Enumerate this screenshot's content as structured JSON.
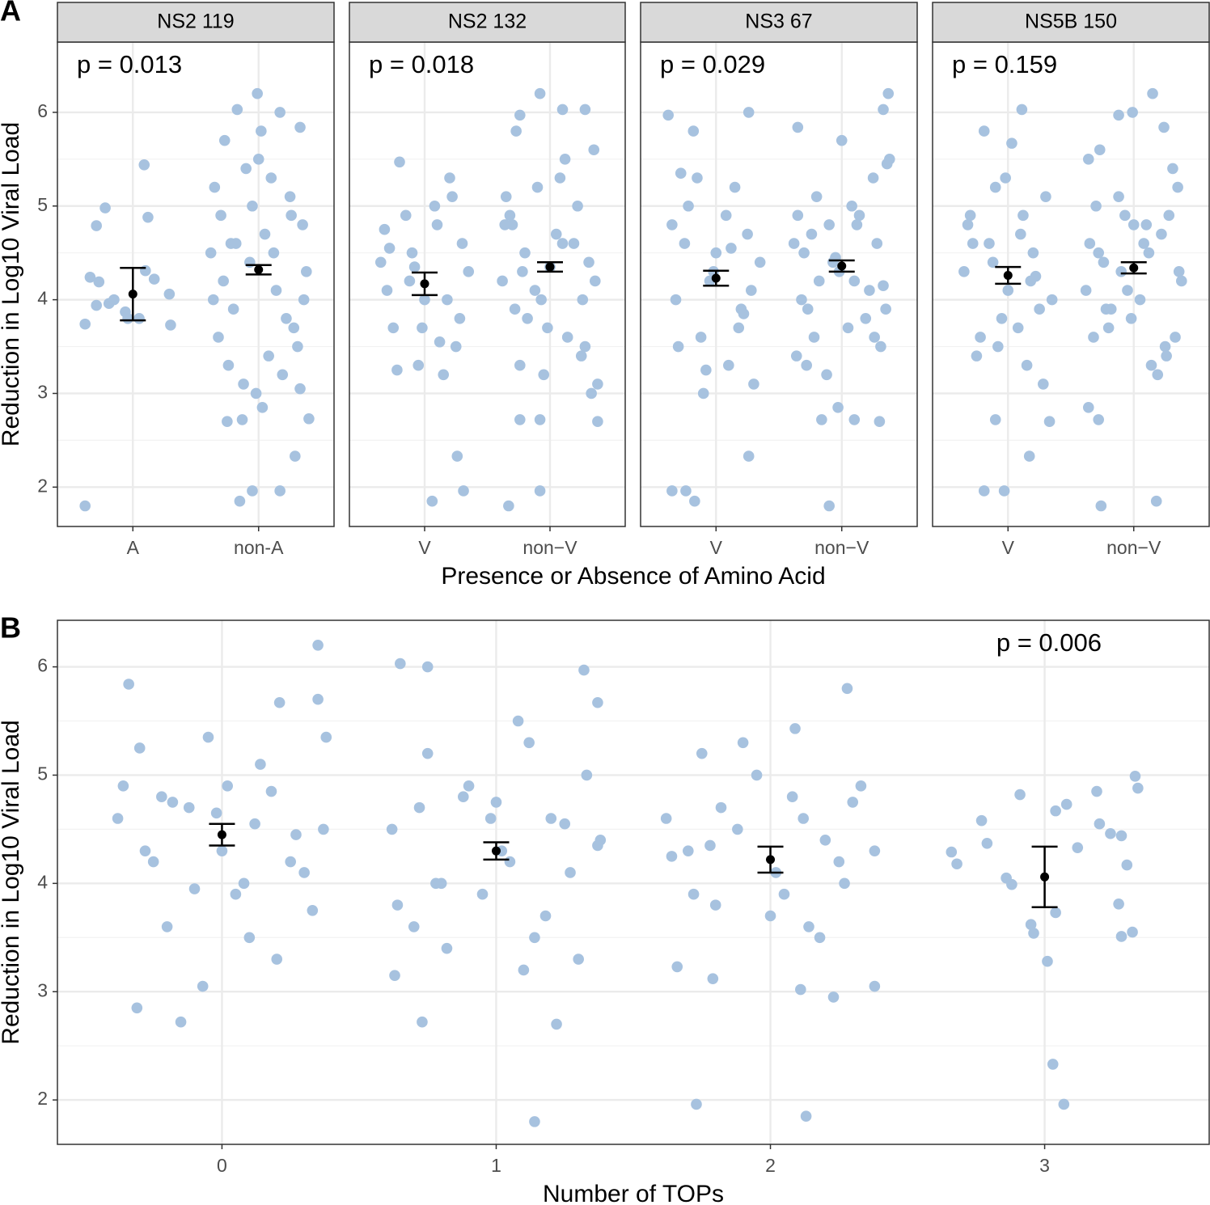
{
  "chart_data": [
    {
      "type": "scatter",
      "panel_label": "A",
      "title": "NS2 119",
      "annotation": "p = 0.013",
      "annotation_corner": "top-left",
      "ylabel": "Reduction in Log10 Viral Load",
      "xlabel": "Presence or Absence of Amino Acid",
      "categories": [
        "A",
        "non-A"
      ],
      "xlim": [
        0.4,
        2.6
      ],
      "ylim": [
        1.58,
        6.75
      ],
      "yticks": [
        2,
        3,
        4,
        5,
        6
      ],
      "grid": true,
      "series": [
        {
          "color": "#a7c2df",
          "x": [
            0.62,
            0.62,
            0.66,
            0.71,
            0.71,
            0.73,
            0.78,
            0.81,
            0.85,
            0.94,
            0.96,
            1.05,
            1.09,
            1.1,
            1.12,
            1.17,
            1.29,
            1.3,
            1.85,
            1.95,
            2.17,
            2.29,
            1.75,
            1.87,
            2.4,
            2.03,
            1.99,
            1.83,
            2.17,
            2.33,
            2.02,
            1.65,
            1.7,
            1.78,
            1.9,
            2.1,
            2.25,
            2.35,
            1.62,
            1.72,
            1.8,
            1.93,
            2.05,
            2.14,
            2.22,
            2.31,
            2.38,
            1.68,
            1.76,
            1.88,
            1.98,
            2.08,
            2.19,
            2.28,
            2.36,
            1.64,
            1.82,
            2.12,
            2.26,
            1.95,
            2.0,
            1.73,
            2.33
          ],
          "values": [
            1.8,
            3.74,
            4.24,
            3.94,
            4.79,
            4.19,
            4.98,
            3.96,
            4.0,
            3.87,
            3.8,
            3.8,
            5.44,
            4.31,
            4.88,
            4.22,
            4.06,
            3.73,
            1.85,
            1.96,
            1.96,
            2.33,
            2.7,
            2.72,
            2.73,
            2.85,
            6.2,
            6.03,
            6.0,
            5.84,
            5.8,
            5.2,
            4.9,
            4.6,
            5.4,
            5.3,
            5.1,
            4.8,
            4.5,
            4.2,
            3.9,
            4.4,
            4.7,
            4.1,
            3.8,
            3.5,
            4.3,
            3.6,
            3.3,
            3.1,
            3.0,
            3.4,
            3.2,
            3.7,
            4.0,
            4.0,
            4.6,
            4.5,
            4.9,
            5.0,
            5.5,
            5.7,
            3.05
          ]
        }
      ],
      "means": [
        4.06,
        4.32
      ],
      "errors": [
        0.28,
        0.05
      ]
    },
    {
      "type": "scatter",
      "title": "NS2 132",
      "annotation": "p = 0.018",
      "annotation_corner": "top-left",
      "categories": [
        "V",
        "non−V"
      ],
      "xlim": [
        0.4,
        2.6
      ],
      "ylim": [
        1.58,
        6.75
      ],
      "yticks": [
        2,
        3,
        4,
        5,
        6
      ],
      "grid": true,
      "series": [
        {
          "color": "#a7c2df",
          "x": [
            1.06,
            1.31,
            1.26,
            0.8,
            0.65,
            0.7,
            0.75,
            0.85,
            0.9,
            0.95,
            1.0,
            1.1,
            1.15,
            1.2,
            1.25,
            1.3,
            1.35,
            0.68,
            0.78,
            0.88,
            0.98,
            1.08,
            1.18,
            1.28,
            0.72,
            0.92,
            1.12,
            1.22,
            1.67,
            1.92,
            1.76,
            1.92,
            2.38,
            1.92,
            1.76,
            2.1,
            2.28,
            1.65,
            1.7,
            1.78,
            1.9,
            2.1,
            2.25,
            2.35,
            1.62,
            1.72,
            1.8,
            1.93,
            2.05,
            2.14,
            2.22,
            2.31,
            2.38,
            1.68,
            1.76,
            1.88,
            1.98,
            2.08,
            2.19,
            2.28,
            2.36,
            1.64,
            1.82,
            2.12,
            2.26,
            1.95,
            2.0,
            1.73,
            2.33
          ],
          "values": [
            1.85,
            1.96,
            2.33,
            5.47,
            4.4,
            4.1,
            3.7,
            4.9,
            4.5,
            3.3,
            4.0,
            4.8,
            3.2,
            5.3,
            3.5,
            4.6,
            4.3,
            4.75,
            3.25,
            4.2,
            3.7,
            5.0,
            4.0,
            3.8,
            4.55,
            4.35,
            3.55,
            5.1,
            1.8,
            1.96,
            2.72,
            2.72,
            2.7,
            6.2,
            5.97,
            6.03,
            6.03,
            5.1,
            4.8,
            4.3,
            5.2,
            4.6,
            3.4,
            5.6,
            4.2,
            3.9,
            4.5,
            4.0,
            4.7,
            3.6,
            5.0,
            4.4,
            3.1,
            4.9,
            3.3,
            4.1,
            3.7,
            5.3,
            4.6,
            3.5,
            4.2,
            4.8,
            3.8,
            5.5,
            4.0,
            3.2,
            4.35,
            5.8,
            3.0
          ]
        }
      ],
      "means": [
        4.17,
        4.35
      ],
      "errors": [
        0.12,
        0.05
      ]
    },
    {
      "type": "scatter",
      "title": "NS3 67",
      "annotation": "p = 0.029",
      "annotation_corner": "top-left",
      "categories": [
        "V",
        "non−V"
      ],
      "xlim": [
        0.4,
        2.6
      ],
      "ylim": [
        1.58,
        6.75
      ],
      "yticks": [
        2,
        3,
        4,
        5,
        6
      ],
      "grid": true,
      "series": [
        {
          "color": "#a7c2df",
          "x": [
            0.65,
            0.76,
            0.83,
            1.26,
            0.62,
            1.26,
            0.82,
            0.65,
            0.7,
            0.75,
            0.85,
            0.9,
            0.95,
            1.0,
            1.1,
            1.15,
            1.2,
            1.25,
            1.3,
            1.35,
            0.68,
            0.78,
            0.88,
            0.98,
            1.08,
            1.18,
            1.28,
            0.72,
            0.92,
            1.12,
            1.22,
            1.9,
            1.84,
            2.1,
            2.3,
            2.37,
            2.33,
            1.65,
            1.97,
            1.65,
            1.7,
            1.78,
            1.9,
            2.1,
            2.25,
            2.35,
            1.62,
            1.72,
            1.8,
            1.93,
            2.05,
            2.14,
            2.22,
            2.31,
            2.38,
            1.68,
            1.76,
            1.88,
            1.98,
            2.08,
            2.19,
            2.28,
            2.36,
            1.64,
            1.82,
            2.12,
            2.26,
            1.95,
            2.0,
            1.73,
            2.33
          ],
          "values": [
            1.96,
            1.96,
            1.85,
            2.33,
            5.97,
            6.0,
            5.8,
            4.8,
            3.5,
            4.6,
            5.3,
            3.0,
            4.2,
            4.5,
            3.3,
            5.2,
            3.9,
            4.7,
            3.1,
            4.4,
            4.0,
            5.0,
            3.6,
            4.3,
            4.9,
            3.7,
            4.1,
            5.35,
            3.25,
            4.55,
            3.85,
            1.8,
            2.72,
            2.72,
            2.7,
            6.2,
            6.03,
            5.84,
            2.85,
            4.9,
            4.5,
            3.6,
            4.8,
            4.2,
            5.3,
            3.9,
            4.6,
            3.3,
            5.1,
            4.4,
            3.7,
            4.9,
            4.1,
            3.5,
            5.5,
            4.0,
            4.7,
            3.2,
            4.3,
            5.0,
            3.8,
            4.6,
            5.45,
            3.4,
            4.2,
            4.8,
            3.6,
            4.45,
            5.7,
            3.9,
            4.15
          ]
        }
      ],
      "means": [
        4.23,
        4.36
      ],
      "errors": [
        0.08,
        0.06
      ]
    },
    {
      "type": "scatter",
      "title": "NS5B 150",
      "annotation": "p = 0.159",
      "annotation_corner": "top-left",
      "categories": [
        "V",
        "non−V"
      ],
      "xlim": [
        0.4,
        2.6
      ],
      "ylim": [
        1.58,
        6.75
      ],
      "yticks": [
        2,
        3,
        4,
        5,
        6
      ],
      "grid": true,
      "series": [
        {
          "color": "#a7c2df",
          "x": [
            0.81,
            0.97,
            1.17,
            0.9,
            1.33,
            1.11,
            0.81,
            1.03,
            0.65,
            0.7,
            0.75,
            0.85,
            0.9,
            0.95,
            1.0,
            1.1,
            1.15,
            1.2,
            1.25,
            1.3,
            1.35,
            0.68,
            0.78,
            0.88,
            0.98,
            1.08,
            1.18,
            1.28,
            0.72,
            0.92,
            1.12,
            1.22,
            1.74,
            2.18,
            1.72,
            1.64,
            2.15,
            1.99,
            2.24,
            1.88,
            1.65,
            1.7,
            1.78,
            1.9,
            2.1,
            2.25,
            2.35,
            1.62,
            1.72,
            1.8,
            1.93,
            2.05,
            2.14,
            2.22,
            2.31,
            2.38,
            1.68,
            1.76,
            1.88,
            1.98,
            2.08,
            2.19,
            2.28,
            2.36,
            1.64,
            1.82,
            2.12,
            2.26,
            1.95,
            2.0,
            1.73,
            2.33
          ],
          "values": [
            1.96,
            1.96,
            2.33,
            2.72,
            2.7,
            6.03,
            5.8,
            5.67,
            4.3,
            4.9,
            3.4,
            4.6,
            5.2,
            3.8,
            4.1,
            4.7,
            3.3,
            4.5,
            3.9,
            5.1,
            4.0,
            4.8,
            3.6,
            4.4,
            5.3,
            3.7,
            4.2,
            3.1,
            4.6,
            3.5,
            4.9,
            4.25,
            1.8,
            1.85,
            2.72,
            2.85,
            6.2,
            6.0,
            5.84,
            5.97,
            4.6,
            5.0,
            3.9,
            4.3,
            4.8,
            3.5,
            5.2,
            4.1,
            4.5,
            3.7,
            4.9,
            4.0,
            3.3,
            4.7,
            5.4,
            4.2,
            3.6,
            4.4,
            5.1,
            3.8,
            4.6,
            3.2,
            4.9,
            4.3,
            5.5,
            3.9,
            4.5,
            3.4,
            4.1,
            4.8,
            5.6,
            3.6
          ]
        }
      ],
      "means": [
        4.26,
        4.34
      ],
      "errors": [
        0.09,
        0.06
      ]
    },
    {
      "type": "scatter",
      "panel_label": "B",
      "annotation": "p = 0.006",
      "annotation_corner": "top-right",
      "ylabel": "Reduction in Log10 Viral Load",
      "xlabel": "Number of TOPs",
      "xlim": [
        -0.6,
        3.6
      ],
      "xticks": [
        0,
        1,
        2,
        3
      ],
      "ylim": [
        1.59,
        6.43
      ],
      "yticks": [
        2,
        3,
        4,
        5,
        6
      ],
      "grid": true,
      "series": [
        {
          "color": "#a7c2df",
          "x": [
            0.35,
            -0.34,
            -0.31,
            -0.15,
            -0.07,
            0.21,
            0.35,
            -0.38,
            -0.3,
            -0.25,
            -0.2,
            -0.12,
            -0.05,
            0.02,
            0.08,
            0.14,
            0.2,
            0.27,
            0.33,
            0.38,
            -0.36,
            -0.28,
            -0.18,
            -0.1,
            0.05,
            0.12,
            0.18,
            0.25,
            0.3,
            -0.22,
            0.0,
            0.1,
            0.37,
            -0.02,
            1.14,
            1.22,
            0.73,
            0.65,
            0.75,
            1.32,
            1.37,
            0.63,
            0.62,
            0.7,
            0.75,
            0.8,
            0.88,
            0.95,
            1.02,
            1.08,
            1.14,
            1.2,
            1.27,
            1.33,
            1.38,
            0.64,
            0.72,
            0.82,
            0.9,
            1.05,
            1.12,
            1.18,
            1.25,
            1.3,
            0.78,
            1.0,
            1.1,
            1.37,
            0.98,
            1.73,
            2.13,
            2.28,
            2.23,
            2.38,
            1.66,
            1.79,
            2.11,
            2.09,
            1.62,
            1.7,
            1.75,
            1.8,
            1.88,
            1.95,
            2.02,
            2.08,
            2.14,
            2.2,
            2.27,
            2.33,
            2.38,
            1.64,
            1.72,
            1.82,
            1.9,
            2.05,
            2.12,
            2.18,
            2.25,
            2.3,
            1.78,
            2.0,
            2.66,
            2.68,
            2.77,
            2.79,
            2.86,
            2.88,
            2.91,
            2.95,
            2.96,
            3.01,
            3.03,
            3.04,
            3.04,
            3.07,
            3.08,
            3.12,
            3.19,
            3.2,
            3.24,
            3.28,
            3.27,
            3.28,
            3.3,
            3.32,
            3.33,
            3.34
          ],
          "values": [
            6.2,
            5.84,
            2.85,
            2.72,
            3.05,
            5.67,
            5.7,
            4.6,
            5.25,
            4.2,
            3.6,
            4.7,
            5.35,
            4.9,
            4.0,
            5.1,
            3.3,
            4.45,
            3.75,
            5.35,
            4.9,
            4.3,
            4.75,
            3.95,
            3.9,
            4.55,
            4.85,
            4.2,
            4.1,
            4.8,
            4.3,
            3.5,
            4.5,
            4.65,
            1.8,
            2.7,
            2.72,
            6.03,
            6.0,
            5.97,
            5.67,
            3.15,
            4.5,
            3.6,
            5.2,
            4.0,
            4.8,
            3.9,
            4.3,
            5.5,
            3.5,
            4.6,
            4.1,
            5.0,
            4.4,
            3.8,
            4.7,
            3.4,
            4.9,
            4.2,
            5.3,
            3.7,
            4.55,
            3.3,
            4.0,
            4.75,
            3.2,
            4.35,
            4.6,
            1.96,
            1.85,
            5.8,
            2.95,
            3.05,
            3.23,
            3.12,
            3.02,
            5.43,
            4.6,
            4.3,
            5.2,
            3.8,
            4.5,
            5.0,
            4.1,
            4.8,
            3.6,
            4.4,
            4.0,
            4.9,
            4.3,
            4.25,
            3.9,
            4.7,
            5.3,
            3.9,
            4.6,
            3.5,
            4.2,
            4.75,
            4.35,
            3.7,
            4.29,
            4.18,
            4.58,
            4.37,
            4.05,
            3.99,
            4.82,
            3.62,
            3.54,
            3.28,
            2.33,
            3.73,
            4.67,
            1.96,
            4.73,
            4.33,
            4.85,
            4.55,
            4.46,
            4.44,
            3.81,
            3.51,
            4.17,
            3.55,
            4.99,
            4.88
          ]
        }
      ],
      "means": [
        4.45,
        4.3,
        4.22,
        4.06
      ],
      "errors": [
        0.1,
        0.08,
        0.12,
        0.28
      ]
    }
  ]
}
